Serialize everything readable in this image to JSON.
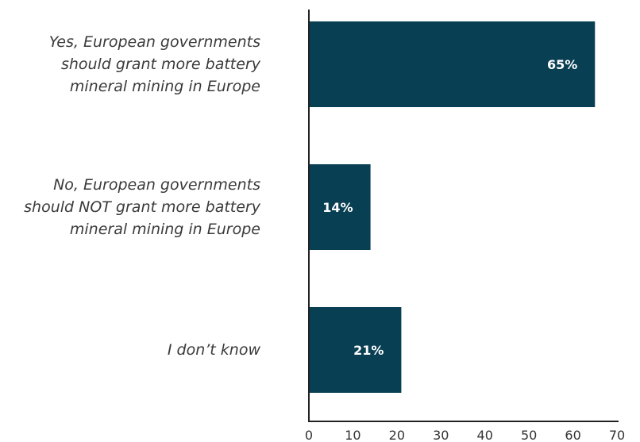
{
  "chart_data": {
    "type": "bar",
    "orientation": "horizontal",
    "categories": [
      [
        "Yes, European governments",
        "should grant more battery",
        "mineral mining in Europe"
      ],
      [
        "No, European governments",
        "should NOT grant more battery",
        "mineral mining in Europe"
      ],
      [
        "I don’t know"
      ]
    ],
    "values": [
      65,
      14,
      21
    ],
    "value_labels": [
      "65%",
      "14%",
      "21%"
    ],
    "xlim": [
      0,
      70
    ],
    "xticks": [
      0,
      10,
      20,
      30,
      40,
      50,
      60,
      70
    ],
    "grid": false,
    "legend": "none",
    "title": "",
    "xlabel": "",
    "ylabel": ""
  },
  "colors": {
    "bar": "#083f53",
    "axis": "#222222"
  }
}
